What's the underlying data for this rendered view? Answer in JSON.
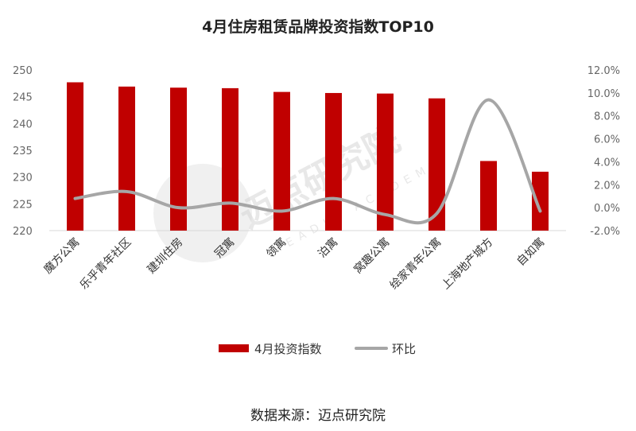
{
  "chart_data": {
    "type": "bar",
    "title": "4月住房租赁品牌投资指数TOP10",
    "categories": [
      "魔方公寓",
      "乐乎青年社区",
      "建圳住房",
      "冠寓",
      "领寓",
      "泊寓",
      "窝趣公寓",
      "绘家青年公寓",
      "上海地产城方",
      "自如寓"
    ],
    "series": [
      {
        "name": "4月投资指数",
        "type": "bar",
        "axis": "left",
        "color": "#c00000",
        "values": [
          247.7,
          246.9,
          246.7,
          246.6,
          245.9,
          245.7,
          245.6,
          244.7,
          233.0,
          231.0
        ]
      },
      {
        "name": "环比",
        "type": "line",
        "axis": "right",
        "color": "#a6a6a6",
        "values": [
          0.8,
          1.4,
          0.0,
          0.4,
          -0.3,
          0.8,
          -0.6,
          -0.5,
          9.4,
          -0.3
        ]
      }
    ],
    "y_left": {
      "min": 220,
      "max": 250,
      "step": 5,
      "ticks": [
        "220",
        "225",
        "230",
        "235",
        "240",
        "245",
        "250"
      ]
    },
    "y_right": {
      "min": -2.0,
      "max": 12.0,
      "step": 2.0,
      "ticks": [
        "-2.0%",
        "0.0%",
        "2.0%",
        "4.0%",
        "6.0%",
        "8.0%",
        "10.0%",
        "12.0%"
      ]
    },
    "legend_position": "bottom",
    "grid": false
  },
  "source_text": "数据来源：迈点研究院",
  "watermark": {
    "text": "迈点研究院",
    "subtext": "MEADIN ACADEMY"
  }
}
